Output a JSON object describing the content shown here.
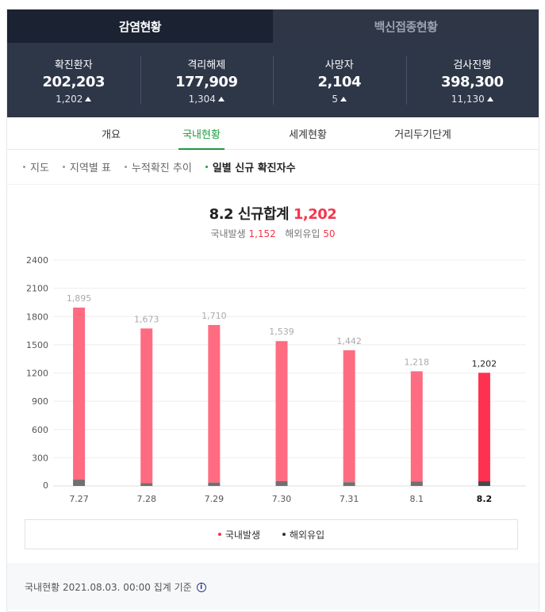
{
  "tabs": [
    {
      "label": "감염현황"
    },
    {
      "label": "백신접종현황"
    }
  ],
  "stats": [
    {
      "label": "확진환자",
      "value": "202,203",
      "delta": "1,202"
    },
    {
      "label": "격리해제",
      "value": "177,909",
      "delta": "1,304"
    },
    {
      "label": "사망자",
      "value": "2,104",
      "delta": "5"
    },
    {
      "label": "검사진행",
      "value": "398,300",
      "delta": "11,130"
    }
  ],
  "subnav": [
    {
      "label": "개요"
    },
    {
      "label": "국내현황"
    },
    {
      "label": "세계현황"
    },
    {
      "label": "거리두기단계"
    }
  ],
  "chips": [
    {
      "label": "지도"
    },
    {
      "label": "지역별 표"
    },
    {
      "label": "누적확진 추이"
    },
    {
      "label": "일별 신규 확진자수"
    }
  ],
  "chart_header": {
    "date": "8.2",
    "title_label": "신규합계",
    "total": "1,202",
    "domestic_label": "국내발생",
    "domestic_value": "1,152",
    "overseas_label": "해외유입",
    "overseas_value": "50"
  },
  "chart_data": {
    "type": "bar",
    "categories": [
      "7.27",
      "7.28",
      "7.29",
      "7.30",
      "7.31",
      "8.1",
      "8.2"
    ],
    "totals_labels": [
      "1,895",
      "1,673",
      "1,710",
      "1,539",
      "1,442",
      "1,218",
      "1,202"
    ],
    "series": [
      {
        "name": "국내발생",
        "values": [
          1828,
          1644,
          1674,
          1488,
          1402,
          1170,
          1152
        ]
      },
      {
        "name": "해외유입",
        "values": [
          67,
          29,
          36,
          51,
          40,
          48,
          50
        ]
      }
    ],
    "ylim": [
      0,
      2400
    ],
    "yticks": [
      0,
      300,
      600,
      900,
      1200,
      1500,
      1800,
      2100,
      2400
    ],
    "grid": true,
    "legend": "bottom",
    "colors": {
      "domestic": "#ff6b81",
      "overseas": "#707070",
      "domestic_highlight": "#ff3150",
      "overseas_highlight": "#4a4a4a"
    }
  },
  "legend": [
    {
      "label": "국내발생",
      "color": "#f4364c"
    },
    {
      "label": "해외유입",
      "color": "#333333"
    }
  ],
  "footer": {
    "text": "국내현황 2021.08.03. 00:00 집계 기준",
    "icon": "info-icon"
  }
}
